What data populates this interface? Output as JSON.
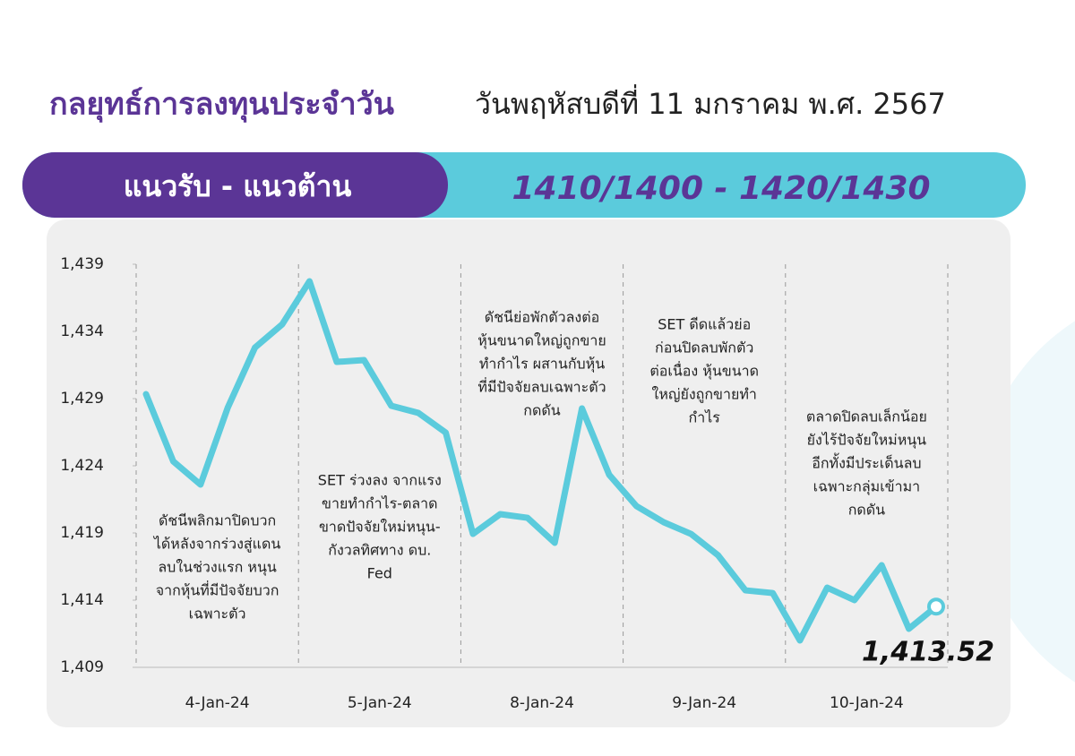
{
  "header": {
    "title": "กลยุทธ์การลงทุนประจำวัน",
    "date": "วันพฤหัสบดีที่ 11 มกราคม พ.ศ. 2567"
  },
  "banner": {
    "label": "แนวรับ - แนวต้าน",
    "levels": "1410/1400 -  1420/1430"
  },
  "chart_data": {
    "type": "line",
    "x_labels": [
      "4-Jan-24",
      "5-Jan-24",
      "8-Jan-24",
      "9-Jan-24",
      "10-Jan-24"
    ],
    "series": [
      {
        "color": "#5bcbdc",
        "values": [
          1429.33,
          1424.33,
          1422.6,
          1428.33,
          1432.8,
          1434.53,
          1437.73,
          1431.73,
          1431.87,
          1428.47,
          1427.93,
          1426.47,
          1418.93,
          1420.4,
          1420.13,
          1418.27,
          1428.27,
          1423.33,
          1421,
          1419.8,
          1418.93,
          1417.33,
          1414.73,
          1414.53,
          1411,
          1414.93,
          1414,
          1416.6,
          1411.87,
          1413.52
        ],
        "value_labels": [
          null,
          null,
          null,
          null,
          null,
          null,
          null,
          null,
          null,
          null,
          null,
          null,
          null,
          null,
          null,
          null,
          null,
          null,
          null,
          null,
          null,
          null,
          null,
          null,
          null,
          null,
          null,
          null,
          null,
          "1,413.52"
        ]
      }
    ],
    "ylim": [
      1409,
      1439
    ],
    "yticks": [
      {
        "value": 1409,
        "label": "1,409"
      },
      {
        "value": 1414,
        "label": "1,414"
      },
      {
        "value": 1419,
        "label": "1,419"
      },
      {
        "value": 1424,
        "label": "1,424"
      },
      {
        "value": 1429,
        "label": "1,429"
      },
      {
        "value": 1434,
        "label": "1,434"
      },
      {
        "value": 1439,
        "label": "1,439"
      }
    ],
    "annotations": [
      [
        "ดัชนีพลิกมาปิดบวก",
        "ได้หลังจากร่วงสู่แดน",
        "ลบในช่วงแรก หนุน",
        "จากหุ้นที่มีปัจจัยบวก",
        "เฉพาะตัว"
      ],
      [
        "SET ร่วงลง จากแรง",
        "ขายทำกำไร-ตลาด",
        "ขาดปัจจัยใหม่หนุน-",
        "กังวลทิศทาง ดบ.",
        "Fed"
      ],
      [
        "ดัชนีย่อพักตัวลงต่อ",
        "หุ้นขนาดใหญ่ถูกขาย",
        "ทำกำไร ผสานกับหุ้น",
        "ที่มีปัจจัยลบเฉพาะตัว",
        "กดดัน"
      ],
      [
        "SET ดีดแล้วย่อ",
        "ก่อนปิดลบพักตัว",
        "ต่อเนื่อง หุ้นขนาด",
        "ใหญ่ยังถูกขายทำ",
        "กำไร"
      ],
      [
        "ตลาดปิดลบเล็กน้อย",
        "ยังไร้ปัจจัยใหม่หนุน",
        "อีกทั้งมีประเด็นลบ",
        "เฉพาะกลุ่มเข้ามา",
        "กดดัน"
      ]
    ]
  }
}
